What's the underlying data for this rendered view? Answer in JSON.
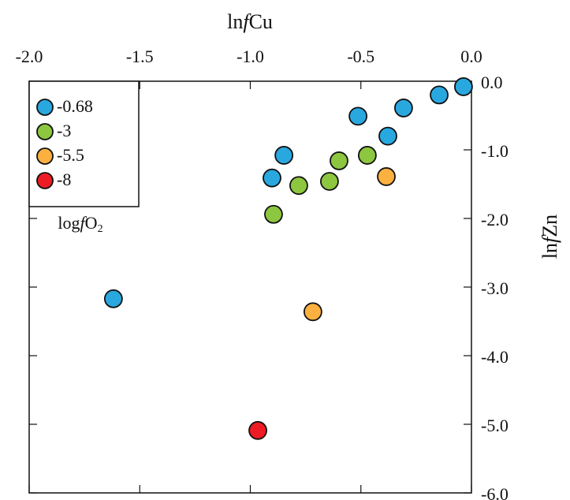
{
  "chart_data": {
    "type": "scatter",
    "x_label": [
      "ln",
      "f",
      "Cu"
    ],
    "y_label": [
      "ln",
      "f",
      "Zn"
    ],
    "legend_title": [
      "log",
      "f",
      "O",
      "2"
    ],
    "legend": "upper left",
    "xlim": [
      -2,
      0
    ],
    "ylim": [
      -6,
      0
    ],
    "xticks": [
      {
        "value": -2,
        "label": "-2.0"
      },
      -1.5,
      {
        "value": -1,
        "label": "-1.0"
      },
      -0.5,
      {
        "value": 0,
        "label": "0.0"
      }
    ],
    "yticks": [
      {
        "value": 0,
        "label": "0.0"
      },
      {
        "value": -1,
        "label": "-1.0"
      },
      {
        "value": -2,
        "label": "-2.0"
      },
      {
        "value": -3,
        "label": "-3.0"
      },
      {
        "value": -4,
        "label": "-4.0"
      },
      {
        "value": -5,
        "label": "-5.0"
      },
      {
        "value": -6,
        "label": "-6.0"
      }
    ],
    "series": [
      {
        "name": "-0.68",
        "color": "#29a8e0",
        "x": [
          -0.036,
          -0.146,
          -0.307,
          -0.513,
          -0.378,
          -0.848,
          -0.902,
          -1.619
        ],
        "values": [
          -0.08,
          -0.2,
          -0.39,
          -0.51,
          -0.8,
          -1.08,
          -1.41,
          -3.17
        ]
      },
      {
        "name": "-3",
        "color": "#8dc63f",
        "x": [
          -0.471,
          -0.599,
          -0.642,
          -0.781,
          -0.895
        ],
        "values": [
          -1.08,
          -1.16,
          -1.46,
          -1.52,
          -1.94
        ]
      },
      {
        "name": "-5.5",
        "color": "#fbb040",
        "x": [
          -0.385,
          -0.717
        ],
        "values": [
          -1.39,
          -3.36
        ]
      },
      {
        "name": "-8",
        "color": "#ed1c24",
        "x": [
          -0.966
        ],
        "values": [
          -5.09
        ]
      }
    ]
  }
}
